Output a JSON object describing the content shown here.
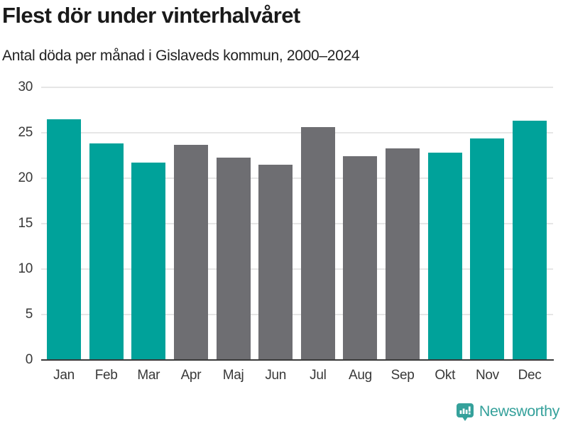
{
  "header": {
    "title": "Flest dör under vinterhalvåret",
    "subtitle": "Antal döda per månad i Gislaveds kommun, 2000–2024"
  },
  "footer": {
    "brand_name": "Newsworthy",
    "brand_icon": "newsworthy-speech-bubble-bar-chart-icon"
  },
  "colors": {
    "winter_teal": "#00a29a",
    "summer_gray": "#6e6e72",
    "brand_teal": "#35a19b",
    "gridline": "#e6e6e6",
    "axis_line": "#3a3a3a",
    "tick_text": "#383838"
  },
  "chart_data": {
    "type": "bar",
    "title": "Flest dör under vinterhalvåret",
    "subtitle": "Antal döda per månad i Gislaveds kommun, 2000–2024",
    "categories": [
      "Jan",
      "Feb",
      "Mar",
      "Apr",
      "Maj",
      "Jun",
      "Jul",
      "Aug",
      "Sep",
      "Okt",
      "Nov",
      "Dec"
    ],
    "values": [
      26.5,
      23.8,
      21.7,
      23.7,
      22.3,
      21.5,
      25.6,
      22.4,
      23.3,
      22.8,
      24.4,
      26.3
    ],
    "bar_colors": [
      "winter_teal",
      "winter_teal",
      "winter_teal",
      "summer_gray",
      "summer_gray",
      "summer_gray",
      "summer_gray",
      "summer_gray",
      "summer_gray",
      "winter_teal",
      "winter_teal",
      "winter_teal"
    ],
    "xlabel": "",
    "ylabel": "",
    "ylim": [
      0,
      30
    ],
    "yticks": [
      0,
      5,
      10,
      15,
      20,
      25,
      30
    ],
    "grid": true,
    "legend": "none"
  }
}
